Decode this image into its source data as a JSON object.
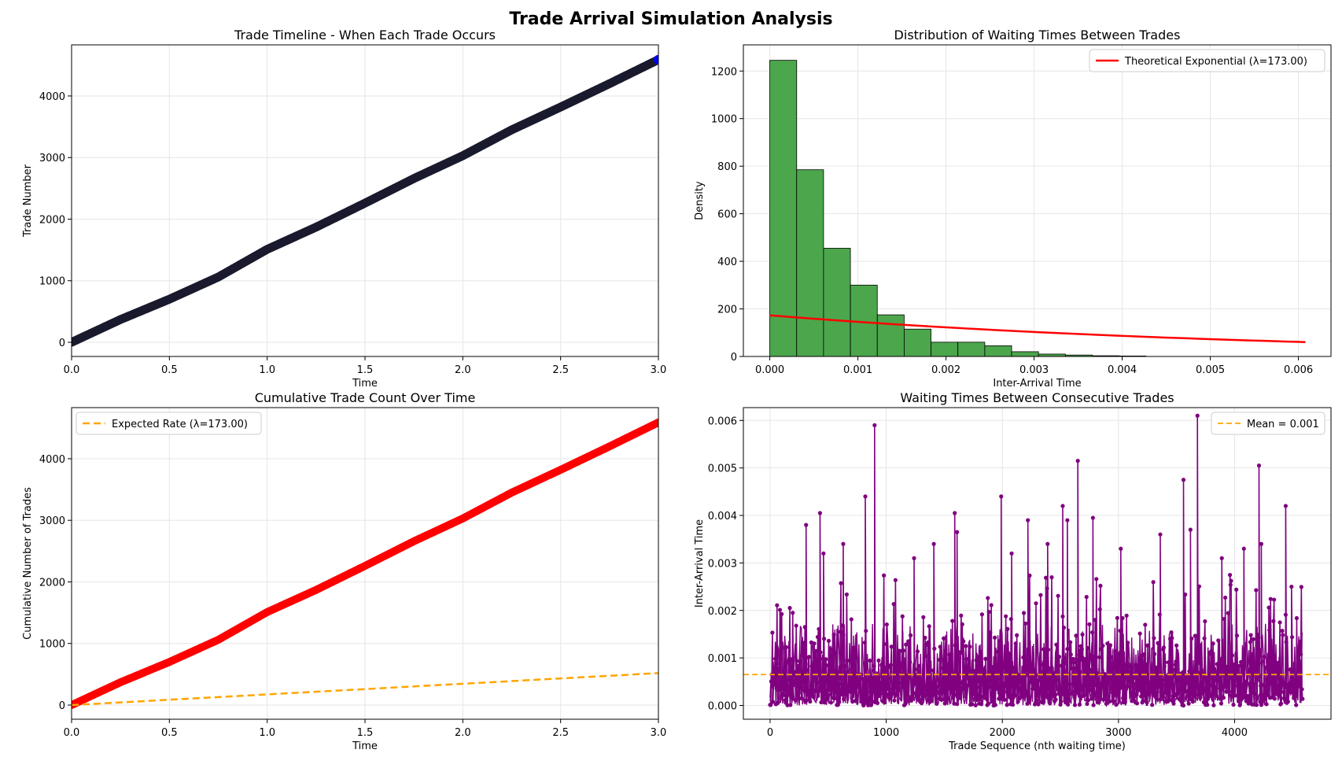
{
  "figure": {
    "title": "Trade Arrival Simulation Analysis"
  },
  "colors": {
    "timeline_points": "#1a1a2e",
    "timeline_edge": "#0000ff",
    "histogram_fill": "#4ca64c",
    "histogram_edge": "#000000",
    "theory_line": "#ff0000",
    "cumulative_points": "#ff0000",
    "expected_line": "#ffa500",
    "waiting_series": "#800080",
    "mean_line": "#ffa500",
    "grid": "#e6e6e6"
  },
  "chart_data": [
    {
      "id": "timeline",
      "type": "scatter",
      "title": "Trade Timeline - When Each Trade Occurs",
      "xlabel": "Time",
      "ylabel": "Trade Number",
      "xlim": [
        0,
        3.0
      ],
      "ylim": [
        -230,
        4830
      ],
      "xticks": [
        0.0,
        0.5,
        1.0,
        1.5,
        2.0,
        2.5,
        3.0
      ],
      "xtick_labels": [
        "0.0",
        "0.5",
        "1.0",
        "1.5",
        "2.0",
        "2.5",
        "3.0"
      ],
      "yticks": [
        0,
        1000,
        2000,
        3000,
        4000
      ],
      "ytick_labels": [
        "0",
        "1000",
        "2000",
        "3000",
        "4000"
      ],
      "grid": true,
      "x": [
        0.0,
        0.25,
        0.5,
        0.75,
        1.0,
        1.25,
        1.5,
        1.75,
        2.0,
        2.25,
        2.5,
        2.75,
        3.0
      ],
      "y": [
        0,
        370,
        700,
        1060,
        1510,
        1870,
        2260,
        2660,
        3030,
        3450,
        3820,
        4200,
        4590
      ]
    },
    {
      "id": "histogram",
      "type": "bar",
      "title": "Distribution of Waiting Times Between Trades",
      "xlabel": "Inter-Arrival Time",
      "ylabel": "Density",
      "xlim": [
        -0.0003,
        0.00637
      ],
      "ylim": [
        0,
        1310
      ],
      "xticks": [
        0.0,
        0.001,
        0.002,
        0.003,
        0.004,
        0.005,
        0.006
      ],
      "xtick_labels": [
        "0.000",
        "0.001",
        "0.002",
        "0.003",
        "0.004",
        "0.005",
        "0.006"
      ],
      "yticks": [
        0,
        200,
        400,
        600,
        800,
        1000,
        1200
      ],
      "ytick_labels": [
        "0",
        "200",
        "400",
        "600",
        "800",
        "1000",
        "1200"
      ],
      "grid": true,
      "bin_width": 0.000305,
      "bin_start": 0.0,
      "values": [
        1245,
        785,
        455,
        300,
        175,
        115,
        60,
        60,
        45,
        20,
        10,
        6,
        3,
        2,
        0,
        0,
        0,
        0,
        0,
        0
      ],
      "legend_position": "top-right",
      "series": [
        {
          "name": "Theoretical Exponential (λ=173.00)",
          "type": "line",
          "x": [
            0.0,
            0.001,
            0.002,
            0.003,
            0.004,
            0.005,
            0.00608
          ],
          "y": [
            173,
            146,
            122,
            103,
            87,
            73,
            61
          ]
        }
      ]
    },
    {
      "id": "cumulative",
      "type": "scatter",
      "title": "Cumulative Trade Count Over Time",
      "xlabel": "Time",
      "ylabel": "Cumulative Number of Trades",
      "xlim": [
        0,
        3.0
      ],
      "ylim": [
        -230,
        4830
      ],
      "xticks": [
        0.0,
        0.5,
        1.0,
        1.5,
        2.0,
        2.5,
        3.0
      ],
      "xtick_labels": [
        "0.0",
        "0.5",
        "1.0",
        "1.5",
        "2.0",
        "2.5",
        "3.0"
      ],
      "yticks": [
        0,
        1000,
        2000,
        3000,
        4000
      ],
      "ytick_labels": [
        "0",
        "1000",
        "2000",
        "3000",
        "4000"
      ],
      "grid": true,
      "x": [
        0.0,
        0.25,
        0.5,
        0.75,
        1.0,
        1.25,
        1.5,
        1.75,
        2.0,
        2.25,
        2.5,
        2.75,
        3.0
      ],
      "y": [
        0,
        370,
        700,
        1060,
        1510,
        1870,
        2260,
        2660,
        3030,
        3450,
        3820,
        4200,
        4590
      ],
      "legend_position": "top-left",
      "series": [
        {
          "name": "Expected Rate (λ=173.00)",
          "type": "line",
          "style": "dashed",
          "x": [
            0.0,
            3.0
          ],
          "y": [
            0,
            519
          ]
        }
      ]
    },
    {
      "id": "waiting",
      "type": "line",
      "title": "Waiting Times Between Consecutive Trades",
      "xlabel": "Trade Sequence (nth waiting time)",
      "ylabel": "Inter-Arrival Time",
      "xlim": [
        -230,
        4830
      ],
      "ylim": [
        -0.00029,
        0.00627
      ],
      "xticks": [
        0,
        1000,
        2000,
        3000,
        4000
      ],
      "xtick_labels": [
        "0",
        "1000",
        "2000",
        "3000",
        "4000"
      ],
      "yticks": [
        0.0,
        0.001,
        0.002,
        0.003,
        0.004,
        0.005,
        0.006
      ],
      "ytick_labels": [
        "0.000",
        "0.001",
        "0.002",
        "0.003",
        "0.004",
        "0.005",
        "0.006"
      ],
      "grid": true,
      "n_points": 4590,
      "mean": 0.00065,
      "spikes": [
        {
          "x": 900,
          "y": 0.0059
        },
        {
          "x": 3680,
          "y": 0.0061
        },
        {
          "x": 2650,
          "y": 0.00515
        },
        {
          "x": 4210,
          "y": 0.00505
        },
        {
          "x": 3560,
          "y": 0.00475
        },
        {
          "x": 820,
          "y": 0.0044
        },
        {
          "x": 1990,
          "y": 0.0044
        },
        {
          "x": 2520,
          "y": 0.0042
        },
        {
          "x": 4440,
          "y": 0.0042
        },
        {
          "x": 430,
          "y": 0.00405
        },
        {
          "x": 1590,
          "y": 0.00405
        },
        {
          "x": 2220,
          "y": 0.0039
        },
        {
          "x": 2780,
          "y": 0.00395
        },
        {
          "x": 2560,
          "y": 0.0039
        },
        {
          "x": 310,
          "y": 0.0038
        },
        {
          "x": 3620,
          "y": 0.0037
        },
        {
          "x": 3360,
          "y": 0.0036
        },
        {
          "x": 1610,
          "y": 0.00365
        },
        {
          "x": 4230,
          "y": 0.0034
        },
        {
          "x": 3020,
          "y": 0.0033
        },
        {
          "x": 630,
          "y": 0.0034
        },
        {
          "x": 1410,
          "y": 0.0034
        },
        {
          "x": 2390,
          "y": 0.0034
        },
        {
          "x": 4080,
          "y": 0.0033
        },
        {
          "x": 1240,
          "y": 0.0031
        },
        {
          "x": 3890,
          "y": 0.0031
        },
        {
          "x": 2080,
          "y": 0.0032
        },
        {
          "x": 460,
          "y": 0.0032
        },
        {
          "x": 4490,
          "y": 0.0025
        }
      ],
      "legend_position": "top-right",
      "series": [
        {
          "name": "Mean = 0.001",
          "type": "hline",
          "style": "dashed",
          "y": 0.00065
        }
      ]
    }
  ]
}
